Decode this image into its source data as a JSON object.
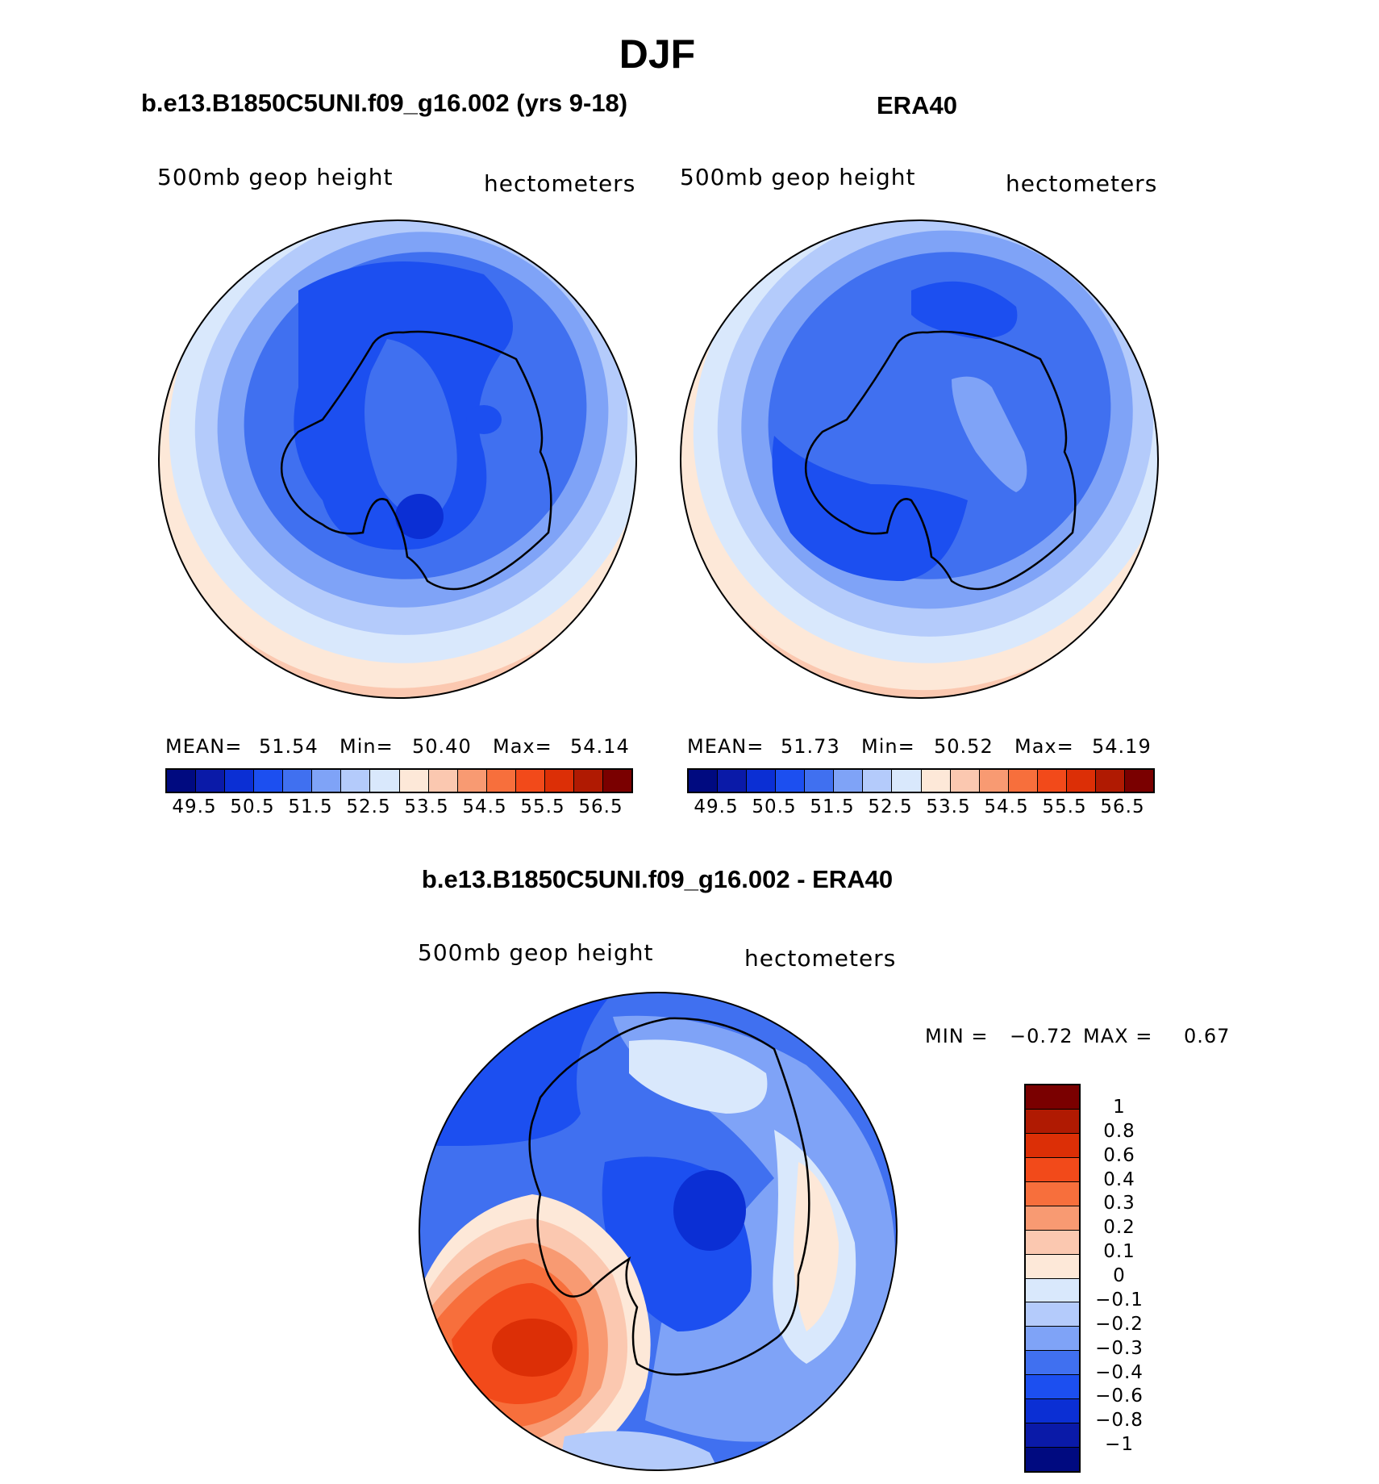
{
  "title": "DJF",
  "panels": [
    {
      "title": "b.e13.B1850C5UNI.f09_g16.002 (yrs 9-18)",
      "field": "500mb geop height",
      "units": "hectometers",
      "stats": {
        "mean_label": "MEAN=",
        "mean": "51.54",
        "min_label": "Min=",
        "min": "50.40",
        "max_label": "Max=",
        "max": "54.14"
      }
    },
    {
      "title": "ERA40",
      "field": "500mb geop height",
      "units": "hectometers",
      "stats": {
        "mean_label": "MEAN=",
        "mean": "51.73",
        "min_label": "Min=",
        "min": "50.52",
        "max_label": "Max=",
        "max": "54.19"
      }
    }
  ],
  "difference": {
    "title": "b.e13.B1850C5UNI.f09_g16.002 - ERA40",
    "field": "500mb geop height",
    "units": "hectometers",
    "minmax": {
      "min_label": "MIN =",
      "min": "−0.72",
      "max_label": "MAX =",
      "max": "0.67"
    }
  },
  "chart_data": [
    {
      "type": "heatmap",
      "projection": "south-polar-stereographic",
      "title": "b.e13.B1850C5UNI.f09_g16.002 (yrs 9-18)",
      "variable": "500mb geop height",
      "units": "hectometers",
      "mean": 51.54,
      "min": 50.4,
      "max": 54.14,
      "colorbar_ticks": [
        "49.5",
        "50.5",
        "51.5",
        "52.5",
        "53.5",
        "54.5",
        "55.5",
        "56.5"
      ],
      "colorbar_colors": [
        "#000a80",
        "#0a1aa8",
        "#0b2fd4",
        "#1c4ff0",
        "#4070f0",
        "#7fa3f7",
        "#b4cbfb",
        "#d9e8fc",
        "#fde8d8",
        "#fbc8b0",
        "#f89a72",
        "#f76f3c",
        "#f24a1a",
        "#dc2f06",
        "#b01a02",
        "#7a0000"
      ]
    },
    {
      "type": "heatmap",
      "projection": "south-polar-stereographic",
      "title": "ERA40",
      "variable": "500mb geop height",
      "units": "hectometers",
      "mean": 51.73,
      "min": 50.52,
      "max": 54.19,
      "colorbar_ticks": [
        "49.5",
        "50.5",
        "51.5",
        "52.5",
        "53.5",
        "54.5",
        "55.5",
        "56.5"
      ],
      "colorbar_colors": [
        "#000a80",
        "#0a1aa8",
        "#0b2fd4",
        "#1c4ff0",
        "#4070f0",
        "#7fa3f7",
        "#b4cbfb",
        "#d9e8fc",
        "#fde8d8",
        "#fbc8b0",
        "#f89a72",
        "#f76f3c",
        "#f24a1a",
        "#dc2f06",
        "#b01a02",
        "#7a0000"
      ]
    },
    {
      "type": "heatmap",
      "projection": "south-polar-stereographic",
      "title": "b.e13.B1850C5UNI.f09_g16.002 - ERA40",
      "variable": "500mb geop height",
      "units": "hectometers",
      "min": -0.72,
      "max": 0.67,
      "colorbar_ticks": [
        "1",
        "0.8",
        "0.6",
        "0.4",
        "0.3",
        "0.2",
        "0.1",
        "0",
        "−0.1",
        "−0.2",
        "−0.3",
        "−0.4",
        "−0.6",
        "−0.8",
        "−1"
      ],
      "colorbar_colors": [
        "#7a0000",
        "#b01a02",
        "#dc2f06",
        "#f24a1a",
        "#f76f3c",
        "#f89a72",
        "#fbc8b0",
        "#fde8d8",
        "#d9e8fc",
        "#b4cbfb",
        "#7fa3f7",
        "#4070f0",
        "#1c4ff0",
        "#0b2fd4",
        "#0a1aa8",
        "#000a80"
      ]
    }
  ]
}
